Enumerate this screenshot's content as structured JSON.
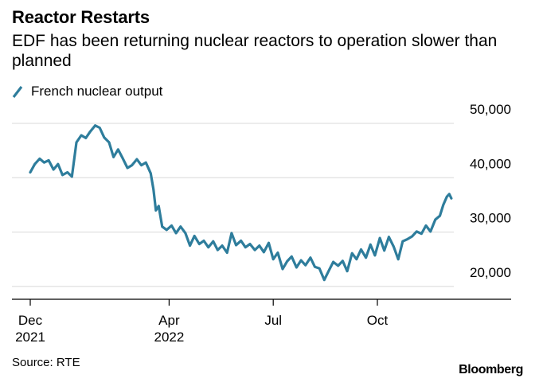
{
  "title": "Reactor Restarts",
  "subtitle": "EDF has been returning nuclear reactors to operation slower than planned",
  "source": "Source: RTE",
  "brand": "Bloomberg",
  "colors": {
    "line": "#2e7d9c",
    "grid": "#d8d8d8",
    "axis": "#000000"
  },
  "chart_data": {
    "type": "line",
    "title": "Reactor Restarts",
    "xlabel": "",
    "ylabel": "",
    "x_range": [
      "2021-12-01",
      "2022-12-31"
    ],
    "ylim": [
      15000,
      50000
    ],
    "y_ticks": [
      {
        "value": 50000,
        "label": "50,000"
      },
      {
        "value": 40000,
        "label": "40,000"
      },
      {
        "value": 30000,
        "label": "30,000"
      },
      {
        "value": 20000,
        "label": "20,000"
      }
    ],
    "x_ticks": [
      {
        "month": 0,
        "line1": "Dec",
        "line2": "2021"
      },
      {
        "month": 4,
        "line1": "Apr",
        "line2": "2022"
      },
      {
        "month": 7,
        "line1": "Jul",
        "line2": ""
      },
      {
        "month": 10,
        "line1": "Oct",
        "line2": ""
      }
    ],
    "legend": "top-left",
    "series": [
      {
        "name": "French nuclear output",
        "month_offsets": [
          0,
          0.13,
          0.27,
          0.4,
          0.53,
          0.67,
          0.8,
          0.93,
          1.07,
          1.2,
          1.33,
          1.47,
          1.6,
          1.73,
          1.87,
          2.0,
          2.13,
          2.27,
          2.4,
          2.53,
          2.67,
          2.8,
          2.93,
          3.07,
          3.2,
          3.33,
          3.47,
          3.55,
          3.62,
          3.7,
          3.8,
          3.93,
          4.07,
          4.2,
          4.33,
          4.47,
          4.6,
          4.73,
          4.87,
          5.0,
          5.13,
          5.27,
          5.4,
          5.53,
          5.67,
          5.8,
          5.93,
          6.07,
          6.2,
          6.33,
          6.47,
          6.6,
          6.73,
          6.87,
          7.0,
          7.13,
          7.27,
          7.4,
          7.53,
          7.67,
          7.8,
          7.93,
          8.07,
          8.2,
          8.33,
          8.47,
          8.6,
          8.73,
          8.87,
          9.0,
          9.13,
          9.27,
          9.4,
          9.53,
          9.67,
          9.8,
          9.93,
          10.07,
          10.2,
          10.33,
          10.47,
          10.6,
          10.73,
          10.87,
          11.0,
          11.13,
          11.27,
          11.4,
          11.53,
          11.67,
          11.8,
          11.9,
          12.0,
          12.07,
          12.13
        ],
        "values": [
          41000,
          42500,
          43500,
          42800,
          43200,
          41500,
          42500,
          40500,
          41000,
          40200,
          46500,
          47800,
          47300,
          48500,
          49600,
          49200,
          47400,
          46500,
          43800,
          45200,
          43500,
          41800,
          42300,
          43400,
          42300,
          42800,
          40800,
          37800,
          34000,
          34800,
          31000,
          30400,
          31200,
          29800,
          31000,
          29800,
          27500,
          29300,
          27800,
          28400,
          27200,
          28300,
          26700,
          27500,
          26200,
          29800,
          27600,
          28400,
          27200,
          27800,
          26700,
          27500,
          26300,
          28000,
          25000,
          26200,
          23200,
          24600,
          25500,
          23500,
          24800,
          23900,
          25300,
          23600,
          23300,
          21200,
          22900,
          24500,
          23800,
          24700,
          22800,
          26100,
          25000,
          26800,
          25300,
          27700,
          25700,
          28900,
          26600,
          29100,
          27300,
          25000,
          28300,
          28700,
          29200,
          30100,
          29700,
          31200,
          30100,
          32300,
          33000,
          35000,
          36500,
          37000,
          36200
        ]
      }
    ]
  }
}
